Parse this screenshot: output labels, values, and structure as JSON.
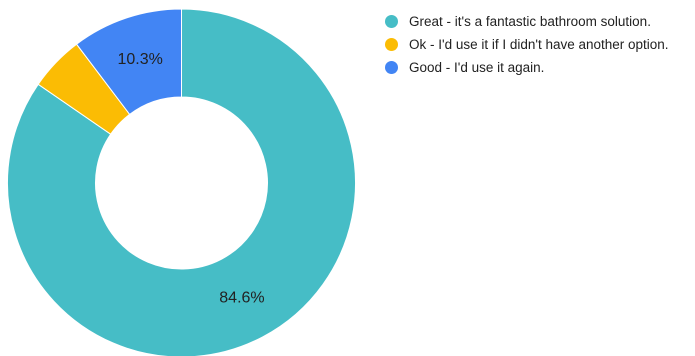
{
  "chart_data": {
    "type": "pie",
    "donut": true,
    "legend_position": "top-right",
    "slices": [
      {
        "label": "Great - it's a fantastic bathroom solution.",
        "value": 84.6,
        "display": "84.6%",
        "color": "#46bdc6"
      },
      {
        "label": "Ok - I'd use it if I didn't have another option.",
        "value": 5.1,
        "display": "",
        "color": "#fbbc04"
      },
      {
        "label": "Good - I'd use it again.",
        "value": 10.3,
        "display": "10.3%",
        "color": "#4285f4"
      }
    ]
  }
}
